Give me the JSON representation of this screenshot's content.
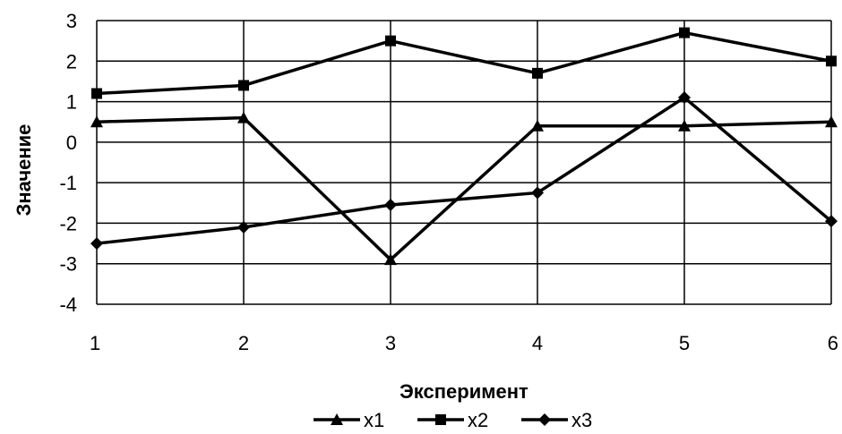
{
  "chart_data": {
    "type": "line",
    "title": "",
    "xlabel": "Эксперимент",
    "ylabel": "Значение",
    "categories": [
      "1",
      "2",
      "3",
      "4",
      "5",
      "6"
    ],
    "ylim": [
      -4,
      3
    ],
    "yticks": [
      "3",
      "2",
      "1",
      "0",
      "-1",
      "-2",
      "-3",
      "-4"
    ],
    "grid": true,
    "legend_position": "bottom",
    "series": [
      {
        "name": "x1",
        "marker": "triangle",
        "values": [
          0.5,
          0.6,
          -2.9,
          0.4,
          0.4,
          0.5
        ]
      },
      {
        "name": "x2",
        "marker": "square",
        "values": [
          1.2,
          1.4,
          2.5,
          1.7,
          2.7,
          2.0
        ]
      },
      {
        "name": "x3",
        "marker": "diamond",
        "values": [
          -2.5,
          -2.1,
          -1.55,
          -1.25,
          1.1,
          -1.95
        ]
      }
    ],
    "colors": {
      "line": "#000000",
      "grid": "#000000",
      "background": "#ffffff"
    }
  }
}
